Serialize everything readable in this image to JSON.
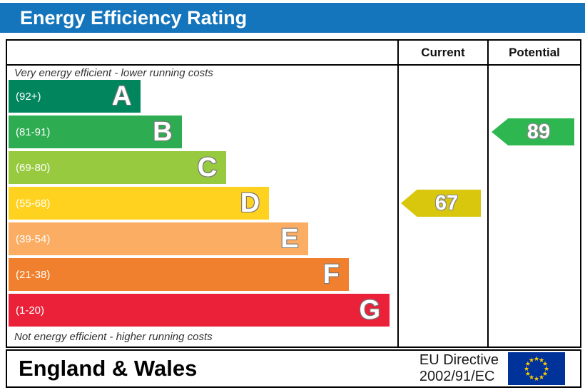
{
  "title": "Energy Efficiency Rating",
  "header": {
    "current": "Current",
    "potential": "Potential"
  },
  "notes": {
    "top": "Very energy efficient - lower running costs",
    "bottom": "Not energy efficient - higher running costs"
  },
  "footer": {
    "region": "England & Wales",
    "directive_line1": "EU Directive",
    "directive_line2": "2002/91/EC"
  },
  "ratings": {
    "current": {
      "value": "67",
      "band": "D",
      "color": "#d8c70d"
    },
    "potential": {
      "value": "89",
      "band": "B",
      "color": "#2eb750"
    }
  },
  "colors": {
    "title_bg": "#1474bc",
    "eu_flag_bg": "#003399",
    "eu_star": "#ffcc00"
  },
  "chart_data": {
    "type": "bar",
    "orientation": "horizontal",
    "title": "Energy Efficiency Rating",
    "bands": [
      {
        "letter": "A",
        "range": "(92+)",
        "min": 92,
        "max": 100,
        "color": "#00855c",
        "width_pct": 34
      },
      {
        "letter": "B",
        "range": "(81-91)",
        "min": 81,
        "max": 91,
        "color": "#2eac51",
        "width_pct": 44.5
      },
      {
        "letter": "C",
        "range": "(69-80)",
        "min": 69,
        "max": 80,
        "color": "#97ca3f",
        "width_pct": 56
      },
      {
        "letter": "D",
        "range": "(55-68)",
        "min": 55,
        "max": 68,
        "color": "#ffd21f",
        "width_pct": 67
      },
      {
        "letter": "E",
        "range": "(39-54)",
        "min": 39,
        "max": 54,
        "color": "#fbad63",
        "width_pct": 77
      },
      {
        "letter": "F",
        "range": "(21-38)",
        "min": 21,
        "max": 38,
        "color": "#f0802e",
        "width_pct": 87.5
      },
      {
        "letter": "G",
        "range": "(1-20)",
        "min": 1,
        "max": 20,
        "color": "#ea2139",
        "width_pct": 98
      }
    ],
    "current": 67,
    "potential": 89,
    "legend_position": "none",
    "grid": false
  }
}
